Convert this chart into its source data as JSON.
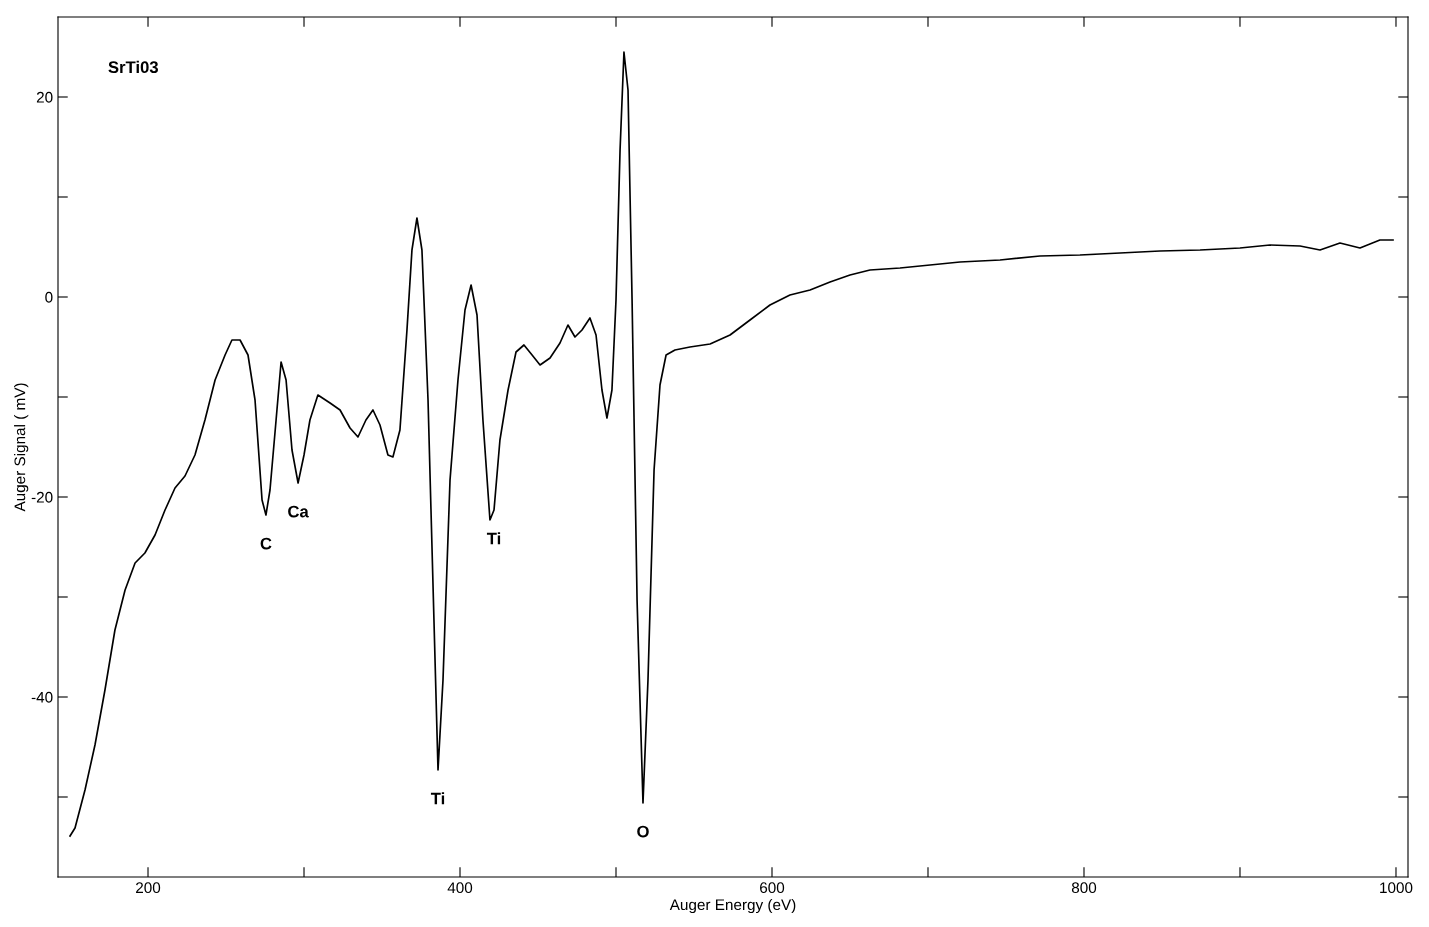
{
  "chart_data": {
    "type": "line",
    "xlabel": "Auger Energy (eV)",
    "ylabel": "Auger Signal ( mV)",
    "xlim": [
      142.3,
      1007.7
    ],
    "ylim": [
      -58,
      28
    ],
    "xticks": [
      200,
      {
        "value": 300,
        "label": null
      },
      400,
      {
        "value": 500,
        "label": null
      },
      600,
      {
        "value": 700,
        "label": null
      },
      800,
      {
        "value": 900,
        "label": null
      },
      1000
    ],
    "yticks": [
      {
        "value": -50,
        "label": null
      },
      -40,
      {
        "value": -30,
        "label": null
      },
      -20,
      {
        "value": -10,
        "label": null
      },
      0,
      {
        "value": 10,
        "label": null
      },
      20
    ],
    "grid": false,
    "marker": "none",
    "line_style": "solid",
    "annotations": [
      "SrTi03",
      {
        "text": "C",
        "x": 275.6,
        "y": -21.8
      },
      {
        "text": "Ca",
        "x": 296.2,
        "y": -18.6
      },
      {
        "text": "Ti",
        "x": 385.9,
        "y": -47.3
      },
      {
        "text": "Ti",
        "x": 421.8,
        "y": -21.3
      },
      {
        "text": "O",
        "x": 517.3,
        "y": -50.6
      }
    ],
    "series": [
      {
        "color": "#000000",
        "x": [
          150,
          153.2,
          159.6,
          166,
          172.4,
          178.8,
          185.3,
          191.7,
          198,
          204.5,
          210.9,
          217.3,
          223.7,
          230.1,
          236.5,
          243,
          249.4,
          253.8,
          259,
          264.1,
          268.6,
          273.1,
          275.6,
          278.2,
          282.1,
          285.3,
          288.5,
          292.3,
          296.2,
          300,
          303.8,
          308.9,
          316.7,
          323.1,
          329.5,
          334.6,
          339.7,
          344.2,
          348.7,
          353.8,
          357,
          361.5,
          366,
          369.2,
          372.4,
          375.6,
          379.5,
          383.3,
          385.9,
          389.1,
          393.6,
          398.7,
          403.2,
          407.1,
          410.9,
          414.7,
          419.2,
          421.8,
          425.6,
          430.8,
          435.9,
          441,
          446.2,
          451.3,
          457.7,
          464.1,
          469.2,
          473.7,
          478.2,
          483.3,
          487.2,
          491,
          494.2,
          497.4,
          500,
          502.6,
          505.1,
          507.7,
          510.3,
          513.5,
          517.3,
          520.5,
          524.4,
          528.2,
          532.1,
          537.8,
          547.4,
          560.3,
          573.1,
          585.9,
          598.7,
          611.5,
          624.4,
          637.2,
          650,
          662.8,
          682.1,
          701.3,
          720.5,
          746.2,
          771.8,
          797.4,
          823.1,
          848.7,
          874.4,
          900,
          919.2,
          938.5,
          951.3,
          964.1,
          976.9,
          989.7,
          998.1
        ],
        "values": [
          -53.9,
          -53.1,
          -49.3,
          -44.8,
          -39.3,
          -33.3,
          -29.3,
          -26.6,
          -25.6,
          -23.8,
          -21.3,
          -19.1,
          -17.9,
          -15.8,
          -12.3,
          -8.3,
          -5.8,
          -4.3,
          -4.3,
          -5.8,
          -10.3,
          -20.3,
          -21.8,
          -19.3,
          -12.3,
          -6.5,
          -8.3,
          -15.3,
          -18.6,
          -15.8,
          -12.3,
          -9.8,
          -10.6,
          -11.3,
          -13.1,
          -14,
          -12.3,
          -11.3,
          -12.8,
          -15.8,
          -16,
          -13.3,
          -3.3,
          4.7,
          7.9,
          4.7,
          -10.3,
          -32.3,
          -47.3,
          -38.3,
          -18.3,
          -8.3,
          -1.3,
          1.2,
          -1.8,
          -12.3,
          -22.3,
          -21.3,
          -14.3,
          -9.3,
          -5.5,
          -4.8,
          -5.8,
          -6.8,
          -6.1,
          -4.6,
          -2.8,
          -4,
          -3.3,
          -2.1,
          -3.8,
          -9.3,
          -12.1,
          -9.3,
          -0.3,
          14.7,
          24.5,
          20.7,
          -0.3,
          -30.3,
          -50.6,
          -38.3,
          -17.3,
          -8.8,
          -5.8,
          -5.3,
          -5,
          -4.7,
          -3.8,
          -2.3,
          -0.8,
          0.2,
          0.7,
          1.5,
          2.2,
          2.7,
          2.9,
          3.2,
          3.5,
          3.7,
          4.1,
          4.2,
          4.4,
          4.6,
          4.7,
          4.9,
          5.2,
          5.1,
          4.7,
          5.4,
          4.9,
          5.7,
          5.7
        ]
      }
    ]
  }
}
